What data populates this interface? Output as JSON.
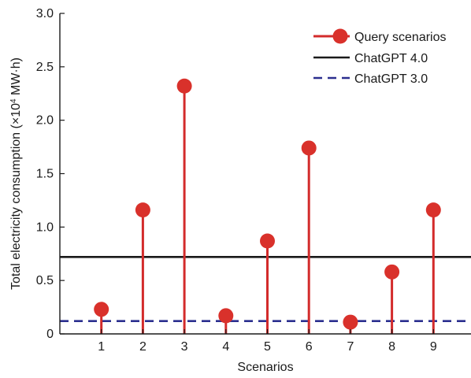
{
  "chart_data": {
    "type": "stem",
    "xlabel": "Scenarios",
    "ylabel_main": "Total electricity consumption (×10",
    "ylabel_sup": "4",
    "ylabel_unit": " MW·h)",
    "ylim": [
      0,
      3.0
    ],
    "xlim": [
      0,
      10
    ],
    "yticks": [
      0,
      0.5,
      1.0,
      1.5,
      2.0,
      2.5,
      3.0
    ],
    "ytick_labels": [
      "0",
      "0.5",
      "1.0",
      "1.5",
      "2.0",
      "2.5",
      "3.0"
    ],
    "categories": [
      "1",
      "2",
      "3",
      "4",
      "5",
      "6",
      "7",
      "8",
      "9"
    ],
    "series": [
      {
        "name": "Query scenarios",
        "type": "stem",
        "color": "#d9312b",
        "x": [
          1,
          2,
          3,
          4,
          5,
          6,
          7,
          8,
          9
        ],
        "values": [
          0.23,
          1.16,
          2.32,
          0.17,
          0.87,
          1.74,
          0.11,
          0.58,
          1.16
        ]
      },
      {
        "name": "ChatGPT 4.0",
        "type": "hline",
        "color": "#1a1a1a",
        "style": "solid",
        "value": 0.72
      },
      {
        "name": "ChatGPT 3.0",
        "type": "hline",
        "color": "#2b2f8f",
        "style": "dashed",
        "value": 0.12
      }
    ],
    "legend_position": "top-right",
    "grid": false
  }
}
